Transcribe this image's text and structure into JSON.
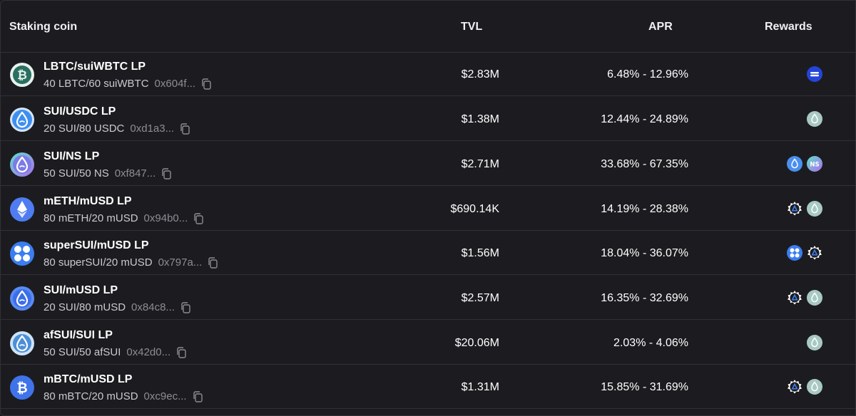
{
  "header": {
    "coin": "Staking coin",
    "tvl": "TVL",
    "apr": "APR",
    "rewards": "Rewards"
  },
  "rows": [
    {
      "name": "LBTC/suiWBTC LP",
      "ratio": "40 LBTC/60 suiWBTC",
      "address": "0x604f...",
      "tvl": "$2.83M",
      "apr": "6.48% - 12.96%",
      "icon": "lbtc-icon",
      "rewards": [
        "deep-icon"
      ]
    },
    {
      "name": "SUI/USDC LP",
      "ratio": "20 SUI/80 USDC",
      "address": "0xd1a3...",
      "tvl": "$1.38M",
      "apr": "12.44% - 24.89%",
      "icon": "sui-usdc-icon",
      "rewards": [
        "sui-reward-icon"
      ]
    },
    {
      "name": "SUI/NS LP",
      "ratio": "50 SUI/50 NS",
      "address": "0xf847...",
      "tvl": "$2.71M",
      "apr": "33.68% - 67.35%",
      "icon": "sui-ns-icon",
      "rewards": [
        "sui-blue-icon",
        "ns-icon"
      ]
    },
    {
      "name": "mETH/mUSD LP",
      "ratio": "80 mETH/20 mUSD",
      "address": "0x94b0...",
      "tvl": "$690.14K",
      "apr": "14.19% - 28.38%",
      "icon": "eth-icon",
      "rewards": [
        "gear-icon",
        "sui-reward-icon"
      ]
    },
    {
      "name": "superSUI/mUSD LP",
      "ratio": "80 superSUI/20 mUSD",
      "address": "0x797a...",
      "tvl": "$1.56M",
      "apr": "18.04% - 36.07%",
      "icon": "supersui-icon",
      "rewards": [
        "supersui-reward-icon",
        "gear-icon"
      ]
    },
    {
      "name": "SUI/mUSD LP",
      "ratio": "20 SUI/80 mUSD",
      "address": "0x84c8...",
      "tvl": "$2.57M",
      "apr": "16.35% - 32.69%",
      "icon": "sui-icon",
      "rewards": [
        "gear-icon",
        "sui-reward-icon"
      ]
    },
    {
      "name": "afSUI/SUI LP",
      "ratio": "50 SUI/50 afSUI",
      "address": "0x42d0...",
      "tvl": "$20.06M",
      "apr": "2.03% - 4.06%",
      "icon": "afsui-icon",
      "rewards": [
        "sui-reward-icon"
      ]
    },
    {
      "name": "mBTC/mUSD LP",
      "ratio": "80 mBTC/20 mUSD",
      "address": "0xc9ec...",
      "tvl": "$1.31M",
      "apr": "15.85% - 31.69%",
      "icon": "btc-icon",
      "rewards": [
        "gear-icon",
        "sui-reward-icon"
      ]
    }
  ],
  "colors": {
    "background": "#1c1c20",
    "border": "#303036",
    "text": "#ffffff",
    "muted": "#8c8c94"
  }
}
